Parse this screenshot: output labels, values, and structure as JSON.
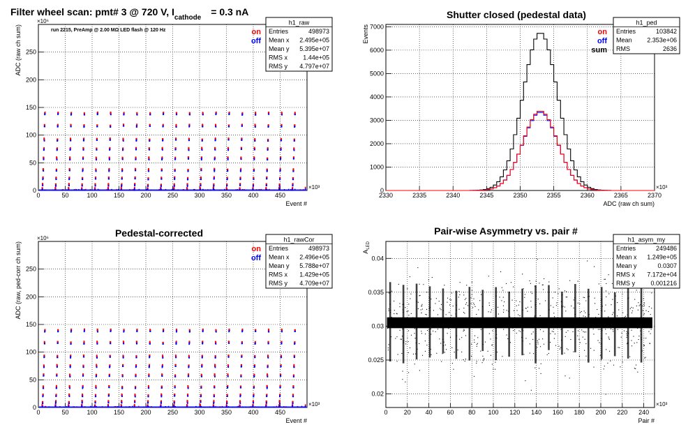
{
  "chart_data": [
    {
      "type": "scatter",
      "title": "Filter wheel scan: pmt#   3 @   720 V, I",
      "title_sub": "cathode",
      "title_tail": "= 0.3 nA",
      "annotation": "run 2215, PreAmp @ 2.00 MΩ  LED flash @  120 Hz",
      "xlabel": "Event #",
      "ylabel": "ADC (raw ch sum)",
      "x_exponent": "×10³",
      "y_exponent": "×10⁶",
      "xlim": [
        0,
        500
      ],
      "ylim": [
        0,
        300
      ],
      "x_ticks": [
        0,
        50,
        100,
        150,
        200,
        250,
        300,
        350,
        400,
        450
      ],
      "y_ticks": [
        0,
        50,
        100,
        150,
        200,
        250
      ],
      "grid": true,
      "series": [
        {
          "name": "on",
          "color": "#ff0000"
        },
        {
          "name": "off",
          "color": "#0000ff"
        }
      ],
      "levels": [
        3,
        10,
        22,
        37,
        58,
        75,
        92,
        117,
        139
      ],
      "block_period": 24.5,
      "stats": {
        "title": "h1_raw",
        "rows": [
          [
            "Entries",
            "498973"
          ],
          [
            "Mean x",
            "2.495e+05"
          ],
          [
            "Mean y",
            "5.395e+07"
          ],
          [
            "RMS x",
            "1.44e+05"
          ],
          [
            "RMS y",
            "4.797e+07"
          ]
        ]
      }
    },
    {
      "type": "line",
      "title": "Shutter closed (pedestal data)",
      "xlabel": "ADC (raw ch sum)",
      "ylabel": "Events",
      "x_exponent": "×10³",
      "xlim": [
        2330,
        2370
      ],
      "ylim": [
        0,
        7100
      ],
      "x_ticks": [
        2330,
        2335,
        2340,
        2345,
        2350,
        2355,
        2360,
        2365,
        2370
      ],
      "y_ticks": [
        0,
        1000,
        2000,
        3000,
        4000,
        5000,
        6000,
        7000
      ],
      "grid": true,
      "series": [
        {
          "name": "on",
          "color": "#ff0000",
          "peak": 3400,
          "mean": 2353,
          "sigma": 2.6
        },
        {
          "name": "off",
          "color": "#0000ff",
          "peak": 3350,
          "mean": 2353,
          "sigma": 2.62
        },
        {
          "name": "sum",
          "color": "#000000",
          "peak": 6750,
          "mean": 2353,
          "sigma": 2.6
        }
      ],
      "stats": {
        "title": "h1_ped",
        "rows": [
          [
            "Entries",
            "103842"
          ],
          [
            "Mean",
            "2.353e+06"
          ],
          [
            "RMS",
            "2636"
          ]
        ]
      }
    },
    {
      "type": "scatter",
      "title": "Pedestal-corrected",
      "xlabel": "Event #",
      "ylabel": "ADC (raw, ped-corr ch sum)",
      "x_exponent": "×10³",
      "y_exponent": "×10⁶",
      "xlim": [
        0,
        500
      ],
      "ylim": [
        0,
        300
      ],
      "x_ticks": [
        0,
        50,
        100,
        150,
        200,
        250,
        300,
        350,
        400,
        450
      ],
      "y_ticks": [
        0,
        50,
        100,
        150,
        200,
        250
      ],
      "grid": true,
      "series": [
        {
          "name": "on",
          "color": "#ff0000"
        },
        {
          "name": "off",
          "color": "#0000ff"
        }
      ],
      "levels": [
        3,
        10,
        22,
        37,
        58,
        75,
        92,
        117,
        139
      ],
      "block_period": 24.5,
      "stats": {
        "title": "h1_rawCor",
        "rows": [
          [
            "Entries",
            "498973"
          ],
          [
            "Mean x",
            "2.496e+05"
          ],
          [
            "Mean y",
            "5.788e+07"
          ],
          [
            "RMS x",
            "1.429e+05"
          ],
          [
            "RMS y",
            "4.709e+07"
          ]
        ]
      }
    },
    {
      "type": "scatter",
      "title": "Pair-wise Asymmetry vs. pair #",
      "xlabel": "Pair #",
      "ylabel": "A",
      "ylabel_sub": "LED",
      "x_exponent": "×10³",
      "xlim": [
        0,
        250
      ],
      "ylim": [
        0.018,
        0.0425
      ],
      "x_ticks": [
        0,
        20,
        40,
        60,
        80,
        100,
        120,
        140,
        160,
        180,
        200,
        220,
        240
      ],
      "y_ticks": [
        0.02,
        0.025,
        0.03,
        0.035,
        0.04
      ],
      "grid": true,
      "band_center": 0.0305,
      "band_halfwidth": 0.0008,
      "spike_period": 12.3,
      "stats": {
        "title": "h1_asym_my",
        "rows": [
          [
            "Entries",
            "249486"
          ],
          [
            "Mean x",
            "1.249e+05"
          ],
          [
            "Mean y",
            "0.0307"
          ],
          [
            "RMS x",
            "7.172e+04"
          ],
          [
            "RMS y",
            "0.001216"
          ]
        ]
      }
    }
  ]
}
